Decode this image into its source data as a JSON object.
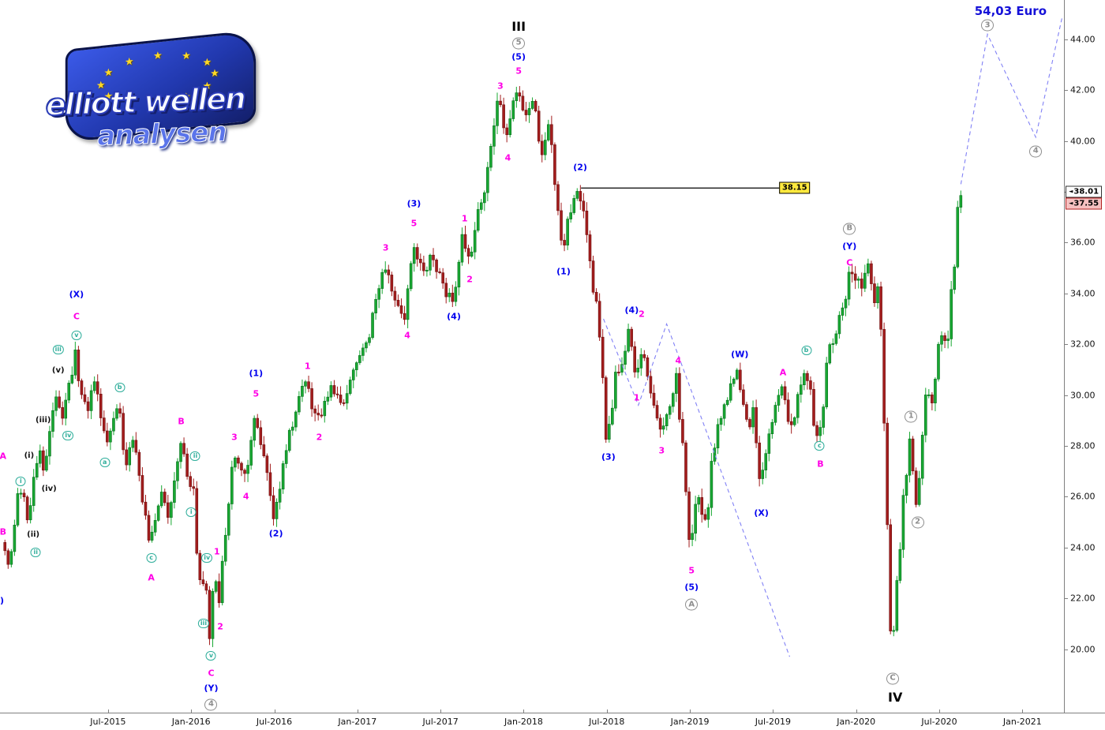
{
  "logo": {
    "line1": "elliott wellen",
    "line2": "analysen",
    "stars_count": 12,
    "star_icon": "★"
  },
  "target_label": "54,03 Euro",
  "price_markers": {
    "arrow_icon": "◄",
    "white_box": "38.01",
    "red_box": "37.55"
  },
  "colors": {
    "candle_up": "#18a832",
    "candle_down": "#a31d1d",
    "dashed_projection": "#8181f5",
    "level_line": "#000000",
    "level_label_bg": "#ffe93e",
    "wave_magenta": "#ff00e6",
    "wave_blue": "#0000ee",
    "wave_gray": "#8d8d8d",
    "wave_green": "#2fae9b",
    "target_blue": "#1511d8"
  },
  "chart_data": {
    "type": "candlestick",
    "x_range": [
      2014.85,
      2021.25
    ],
    "y_range": [
      17.5,
      45.55
    ],
    "price_axis_ticks": [
      44,
      42,
      40,
      38,
      36,
      34,
      32,
      30,
      28,
      26,
      24,
      22,
      20
    ],
    "time_axis_ticks": [
      {
        "label": "Jul-2015",
        "t": 2015.5
      },
      {
        "label": "Jan-2016",
        "t": 2016.0
      },
      {
        "label": "Jul-2016",
        "t": 2016.5
      },
      {
        "label": "Jan-2017",
        "t": 2017.0
      },
      {
        "label": "Jul-2017",
        "t": 2017.5
      },
      {
        "label": "Jan-2018",
        "t": 2018.0
      },
      {
        "label": "Jul-2018",
        "t": 2018.5
      },
      {
        "label": "Jan-2019",
        "t": 2019.0
      },
      {
        "label": "Jul-2019",
        "t": 2019.5
      },
      {
        "label": "Jan-2020",
        "t": 2020.0
      },
      {
        "label": "Jul-2020",
        "t": 2020.5
      },
      {
        "label": "Jan-2021",
        "t": 2021.0
      }
    ],
    "price_path": [
      [
        2014.87,
        24.2
      ],
      [
        2014.91,
        23.4
      ],
      [
        2014.98,
        26.3
      ],
      [
        2015.03,
        25.2
      ],
      [
        2015.09,
        28.0
      ],
      [
        2015.13,
        26.9
      ],
      [
        2015.19,
        30.3
      ],
      [
        2015.24,
        29.1
      ],
      [
        2015.31,
        31.6
      ],
      [
        2015.38,
        29.3
      ],
      [
        2015.43,
        30.6
      ],
      [
        2015.5,
        28.1
      ],
      [
        2015.57,
        29.5
      ],
      [
        2015.62,
        27.3
      ],
      [
        2015.66,
        28.3
      ],
      [
        2015.76,
        24.1
      ],
      [
        2015.83,
        26.1
      ],
      [
        2015.88,
        25.1
      ],
      [
        2015.94,
        28.2
      ],
      [
        2016.0,
        26.2
      ],
      [
        2016.02,
        27.0
      ],
      [
        2016.05,
        23.0
      ],
      [
        2016.075,
        21.8
      ],
      [
        2016.09,
        22.9
      ],
      [
        2016.12,
        20.3
      ],
      [
        2016.155,
        23.2
      ],
      [
        2016.175,
        21.5
      ],
      [
        2016.26,
        27.8
      ],
      [
        2016.33,
        26.6
      ],
      [
        2016.39,
        29.5
      ],
      [
        2016.45,
        27.2
      ],
      [
        2016.51,
        25.2
      ],
      [
        2016.6,
        28.6
      ],
      [
        2016.7,
        30.6
      ],
      [
        2016.77,
        28.9
      ],
      [
        2016.85,
        30.3
      ],
      [
        2016.92,
        29.5
      ],
      [
        2017.0,
        31.1
      ],
      [
        2017.08,
        32.3
      ],
      [
        2017.17,
        35.2
      ],
      [
        2017.24,
        33.8
      ],
      [
        2017.3,
        33.0
      ],
      [
        2017.34,
        36.1
      ],
      [
        2017.4,
        34.7
      ],
      [
        2017.46,
        35.5
      ],
      [
        2017.52,
        34.3
      ],
      [
        2017.58,
        33.8
      ],
      [
        2017.645,
        36.4
      ],
      [
        2017.675,
        35.1
      ],
      [
        2017.78,
        38.6
      ],
      [
        2017.86,
        41.6
      ],
      [
        2017.905,
        39.9
      ],
      [
        2017.97,
        42.2
      ],
      [
        2018.03,
        40.9
      ],
      [
        2018.07,
        41.8
      ],
      [
        2018.11,
        39.4
      ],
      [
        2018.16,
        40.6
      ],
      [
        2018.21,
        37.3
      ],
      [
        2018.24,
        35.6
      ],
      [
        2018.3,
        37.3
      ],
      [
        2018.34,
        38.1
      ],
      [
        2018.4,
        35.6
      ],
      [
        2018.45,
        33.3
      ],
      [
        2018.51,
        28.3
      ],
      [
        2018.57,
        30.8
      ],
      [
        2018.65,
        32.5
      ],
      [
        2018.68,
        30.6
      ],
      [
        2018.72,
        32.1
      ],
      [
        2018.83,
        28.5
      ],
      [
        2018.93,
        30.8
      ],
      [
        2019.01,
        23.8
      ],
      [
        2019.06,
        26.1
      ],
      [
        2019.1,
        24.9
      ],
      [
        2019.17,
        28.7
      ],
      [
        2019.24,
        30.1
      ],
      [
        2019.3,
        30.9
      ],
      [
        2019.36,
        28.7
      ],
      [
        2019.4,
        29.5
      ],
      [
        2019.43,
        26.2
      ],
      [
        2019.5,
        29.1
      ],
      [
        2019.56,
        30.2
      ],
      [
        2019.62,
        28.8
      ],
      [
        2019.7,
        31.0
      ],
      [
        2019.78,
        28.4
      ],
      [
        2019.85,
        31.7
      ],
      [
        2019.92,
        33.5
      ],
      [
        2019.98,
        34.9
      ],
      [
        2020.04,
        34.3
      ],
      [
        2020.08,
        35.1
      ],
      [
        2020.12,
        33.9
      ],
      [
        2020.15,
        34.6
      ],
      [
        2020.18,
        28.5
      ],
      [
        2020.22,
        19.5
      ],
      [
        2020.27,
        23.9
      ],
      [
        2020.33,
        28.4
      ],
      [
        2020.37,
        25.8
      ],
      [
        2020.43,
        30.3
      ],
      [
        2020.47,
        29.4
      ],
      [
        2020.52,
        32.7
      ],
      [
        2020.56,
        31.9
      ],
      [
        2020.6,
        35.3
      ],
      [
        2020.63,
        38.0
      ]
    ],
    "level_line": {
      "price": 38.15,
      "t_start": 2018.345,
      "t_end": 2019.54,
      "label_t": 2019.63,
      "label": "38.15"
    },
    "dashed_projections": [
      {
        "points": [
          [
            2018.48,
            33.0
          ],
          [
            2018.69,
            29.6
          ],
          [
            2018.86,
            32.8
          ],
          [
            2019.6,
            19.7
          ]
        ]
      },
      {
        "points": [
          [
            2020.63,
            38.3
          ],
          [
            2020.79,
            44.2
          ],
          [
            2021.08,
            40.15
          ],
          [
            2021.24,
            44.9
          ]
        ]
      }
    ],
    "annotations": [
      {
        "t": 2014.868,
        "p": 27.6,
        "text": "A",
        "s": "magenta"
      },
      {
        "t": 2014.868,
        "p": 24.6,
        "text": "B",
        "s": "magenta"
      },
      {
        "t": 2014.862,
        "p": 21.9,
        "text": ")",
        "s": "blue"
      },
      {
        "t": 2014.975,
        "p": 26.6,
        "text": "i",
        "s": "green-circ"
      },
      {
        "t": 2015.025,
        "p": 27.6,
        "text": "(i)",
        "s": "black"
      },
      {
        "t": 2015.05,
        "p": 24.5,
        "text": "(ii)",
        "s": "black"
      },
      {
        "t": 2015.065,
        "p": 23.8,
        "text": "ii",
        "s": "green-circ"
      },
      {
        "t": 2015.11,
        "p": 29.0,
        "text": "(iii)",
        "s": "black"
      },
      {
        "t": 2015.145,
        "p": 26.3,
        "text": "(iv)",
        "s": "black"
      },
      {
        "t": 2015.2,
        "p": 30.95,
        "text": "(v)",
        "s": "black"
      },
      {
        "t": 2015.2,
        "p": 31.8,
        "text": "iii",
        "s": "green-circ"
      },
      {
        "t": 2015.26,
        "p": 28.4,
        "text": "iv",
        "s": "green-circ"
      },
      {
        "t": 2015.31,
        "p": 32.35,
        "text": "v",
        "s": "green-circ"
      },
      {
        "t": 2015.31,
        "p": 33.1,
        "text": "C",
        "s": "magenta"
      },
      {
        "t": 2015.31,
        "p": 33.95,
        "text": "(X)",
        "s": "blue"
      },
      {
        "t": 2015.48,
        "p": 27.35,
        "text": "a",
        "s": "green-circ"
      },
      {
        "t": 2015.57,
        "p": 30.3,
        "text": "b",
        "s": "green-circ"
      },
      {
        "t": 2015.76,
        "p": 23.6,
        "text": "c",
        "s": "green-circ"
      },
      {
        "t": 2015.76,
        "p": 22.8,
        "text": "A",
        "s": "magenta"
      },
      {
        "t": 2015.94,
        "p": 28.95,
        "text": "B",
        "s": "magenta"
      },
      {
        "t": 2016.0,
        "p": 25.4,
        "text": "i",
        "s": "green-circ"
      },
      {
        "t": 2016.025,
        "p": 27.6,
        "text": "ii",
        "s": "green-circ"
      },
      {
        "t": 2016.075,
        "p": 21.0,
        "text": "iii",
        "s": "green-circ"
      },
      {
        "t": 2016.095,
        "p": 23.6,
        "text": "iv",
        "s": "green-circ"
      },
      {
        "t": 2016.12,
        "p": 19.75,
        "text": "v",
        "s": "green-circ"
      },
      {
        "t": 2016.12,
        "p": 19.05,
        "text": "C",
        "s": "magenta"
      },
      {
        "t": 2016.12,
        "p": 18.45,
        "text": "(Y)",
        "s": "blue"
      },
      {
        "t": 2016.12,
        "p": 17.82,
        "text": "4",
        "s": "gray-circ"
      },
      {
        "t": 2016.155,
        "p": 23.85,
        "text": "1",
        "s": "magenta"
      },
      {
        "t": 2016.175,
        "p": 20.9,
        "text": "2",
        "s": "magenta"
      },
      {
        "t": 2016.26,
        "p": 28.35,
        "text": "3",
        "s": "magenta"
      },
      {
        "t": 2016.33,
        "p": 26.0,
        "text": "4",
        "s": "magenta"
      },
      {
        "t": 2016.39,
        "p": 30.05,
        "text": "5",
        "s": "magenta"
      },
      {
        "t": 2016.39,
        "p": 30.85,
        "text": "(1)",
        "s": "blue"
      },
      {
        "t": 2016.51,
        "p": 24.55,
        "text": "(2)",
        "s": "blue"
      },
      {
        "t": 2016.7,
        "p": 31.15,
        "text": "1",
        "s": "magenta"
      },
      {
        "t": 2016.77,
        "p": 28.35,
        "text": "2",
        "s": "magenta"
      },
      {
        "t": 2017.17,
        "p": 35.8,
        "text": "3",
        "s": "magenta"
      },
      {
        "t": 2017.3,
        "p": 32.35,
        "text": "4",
        "s": "magenta"
      },
      {
        "t": 2017.34,
        "p": 36.75,
        "text": "5",
        "s": "magenta"
      },
      {
        "t": 2017.34,
        "p": 37.55,
        "text": "(3)",
        "s": "blue"
      },
      {
        "t": 2017.58,
        "p": 33.1,
        "text": "(4)",
        "s": "blue"
      },
      {
        "t": 2017.645,
        "p": 36.95,
        "text": "1",
        "s": "magenta"
      },
      {
        "t": 2017.675,
        "p": 34.55,
        "text": "2",
        "s": "magenta"
      },
      {
        "t": 2017.86,
        "p": 42.15,
        "text": "3",
        "s": "magenta"
      },
      {
        "t": 2017.905,
        "p": 39.35,
        "text": "4",
        "s": "magenta"
      },
      {
        "t": 2017.97,
        "p": 42.75,
        "text": "5",
        "s": "magenta"
      },
      {
        "t": 2017.97,
        "p": 43.3,
        "text": "(5)",
        "s": "blue"
      },
      {
        "t": 2017.97,
        "p": 43.85,
        "text": "5",
        "s": "gray-circ"
      },
      {
        "t": 2017.97,
        "p": 44.5,
        "text": "III",
        "s": "black-lg"
      },
      {
        "t": 2018.24,
        "p": 34.85,
        "text": "(1)",
        "s": "blue"
      },
      {
        "t": 2018.34,
        "p": 38.95,
        "text": "(2)",
        "s": "blue"
      },
      {
        "t": 2018.51,
        "p": 27.55,
        "text": "(3)",
        "s": "blue"
      },
      {
        "t": 2018.65,
        "p": 33.35,
        "text": "(4)",
        "s": "blue"
      },
      {
        "t": 2018.71,
        "p": 33.2,
        "text": "2",
        "s": "magenta"
      },
      {
        "t": 2018.68,
        "p": 29.9,
        "text": "1",
        "s": "magenta"
      },
      {
        "t": 2018.83,
        "p": 27.8,
        "text": "3",
        "s": "magenta"
      },
      {
        "t": 2018.93,
        "p": 31.35,
        "text": "4",
        "s": "magenta"
      },
      {
        "t": 2019.01,
        "p": 23.1,
        "text": "5",
        "s": "magenta"
      },
      {
        "t": 2019.01,
        "p": 22.45,
        "text": "(5)",
        "s": "blue"
      },
      {
        "t": 2019.01,
        "p": 21.75,
        "text": "A",
        "s": "gray-circ"
      },
      {
        "t": 2019.3,
        "p": 31.6,
        "text": "(W)",
        "s": "blue"
      },
      {
        "t": 2019.43,
        "p": 25.35,
        "text": "(X)",
        "s": "blue"
      },
      {
        "t": 2019.56,
        "p": 30.9,
        "text": "A",
        "s": "magenta"
      },
      {
        "t": 2019.7,
        "p": 31.75,
        "text": "b",
        "s": "green-circ"
      },
      {
        "t": 2019.78,
        "p": 28.0,
        "text": "c",
        "s": "green-circ"
      },
      {
        "t": 2019.785,
        "p": 27.3,
        "text": "B",
        "s": "magenta"
      },
      {
        "t": 2019.96,
        "p": 36.55,
        "text": "B",
        "s": "gray-circ"
      },
      {
        "t": 2019.96,
        "p": 35.85,
        "text": "(Y)",
        "s": "blue"
      },
      {
        "t": 2019.96,
        "p": 35.2,
        "text": "C",
        "s": "magenta"
      },
      {
        "t": 2020.22,
        "p": 18.85,
        "text": "C",
        "s": "gray-circ"
      },
      {
        "t": 2020.235,
        "p": 18.1,
        "text": "IV",
        "s": "black-lg"
      },
      {
        "t": 2020.33,
        "p": 29.15,
        "text": "1",
        "s": "gray-circ"
      },
      {
        "t": 2020.37,
        "p": 25.0,
        "text": "2",
        "s": "gray-circ"
      },
      {
        "t": 2020.79,
        "p": 44.55,
        "text": "3",
        "s": "gray-circ"
      },
      {
        "t": 2021.08,
        "p": 39.6,
        "text": "4",
        "s": "gray-circ"
      }
    ]
  }
}
